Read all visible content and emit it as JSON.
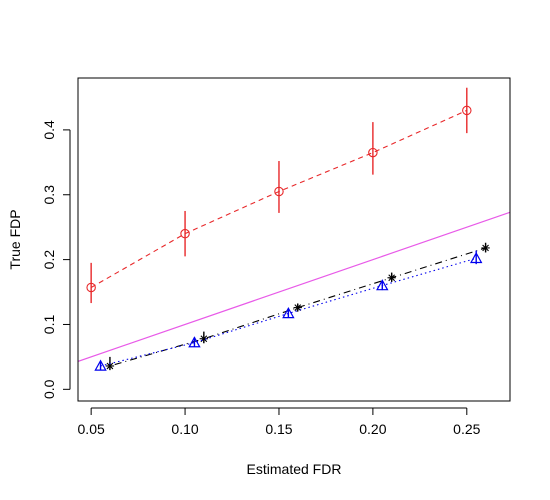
{
  "chart_data": {
    "type": "scatter",
    "xlabel": "Estimated FDR",
    "ylabel": "True FDP",
    "xlim": [
      0.043,
      0.273
    ],
    "ylim": [
      -0.018,
      0.48
    ],
    "x_ticks": [
      0.05,
      0.1,
      0.15,
      0.2,
      0.25
    ],
    "x_tick_labels": [
      "0.05",
      "0.10",
      "0.15",
      "0.20",
      "0.25"
    ],
    "y_ticks": [
      0.0,
      0.1,
      0.2,
      0.3,
      0.4
    ],
    "y_tick_labels": [
      "0.0",
      "0.1",
      "0.2",
      "0.3",
      "0.4"
    ],
    "grid": false,
    "colors": {
      "red": "#e8282a",
      "magenta": "#e85ae8",
      "black": "#000000",
      "blue": "#0000ee"
    },
    "series": [
      {
        "marker": "circle",
        "line": "dashed",
        "color": "#e8282a",
        "x": [
          0.05,
          0.1,
          0.15,
          0.2,
          0.25
        ],
        "y": [
          0.157,
          0.24,
          0.305,
          0.365,
          0.43
        ],
        "err_low": [
          0.133,
          0.205,
          0.272,
          0.331,
          0.395
        ],
        "err_high": [
          0.195,
          0.275,
          0.352,
          0.412,
          0.465
        ]
      },
      {
        "marker": "star",
        "line": "dotdash",
        "color": "#000000",
        "x": [
          0.06,
          0.11,
          0.16,
          0.21,
          0.26
        ],
        "y": [
          0.036,
          0.078,
          0.126,
          0.172,
          0.218
        ],
        "err_low": [
          0.03,
          0.071,
          0.121,
          0.166,
          0.211
        ],
        "err_high": [
          0.05,
          0.089,
          0.132,
          0.18,
          0.226
        ]
      },
      {
        "marker": "triangle",
        "line": "dotted",
        "color": "#0000ee",
        "x": [
          0.055,
          0.105,
          0.155,
          0.205,
          0.255
        ],
        "y": [
          0.036,
          0.072,
          0.117,
          0.16,
          0.202
        ],
        "err_low": [
          0.03,
          0.066,
          0.111,
          0.153,
          0.193
        ],
        "err_high": [
          0.043,
          0.08,
          0.124,
          0.167,
          0.214
        ]
      }
    ],
    "reference_line": {
      "intercept": 0,
      "slope": 1,
      "color": "#e85ae8"
    }
  }
}
